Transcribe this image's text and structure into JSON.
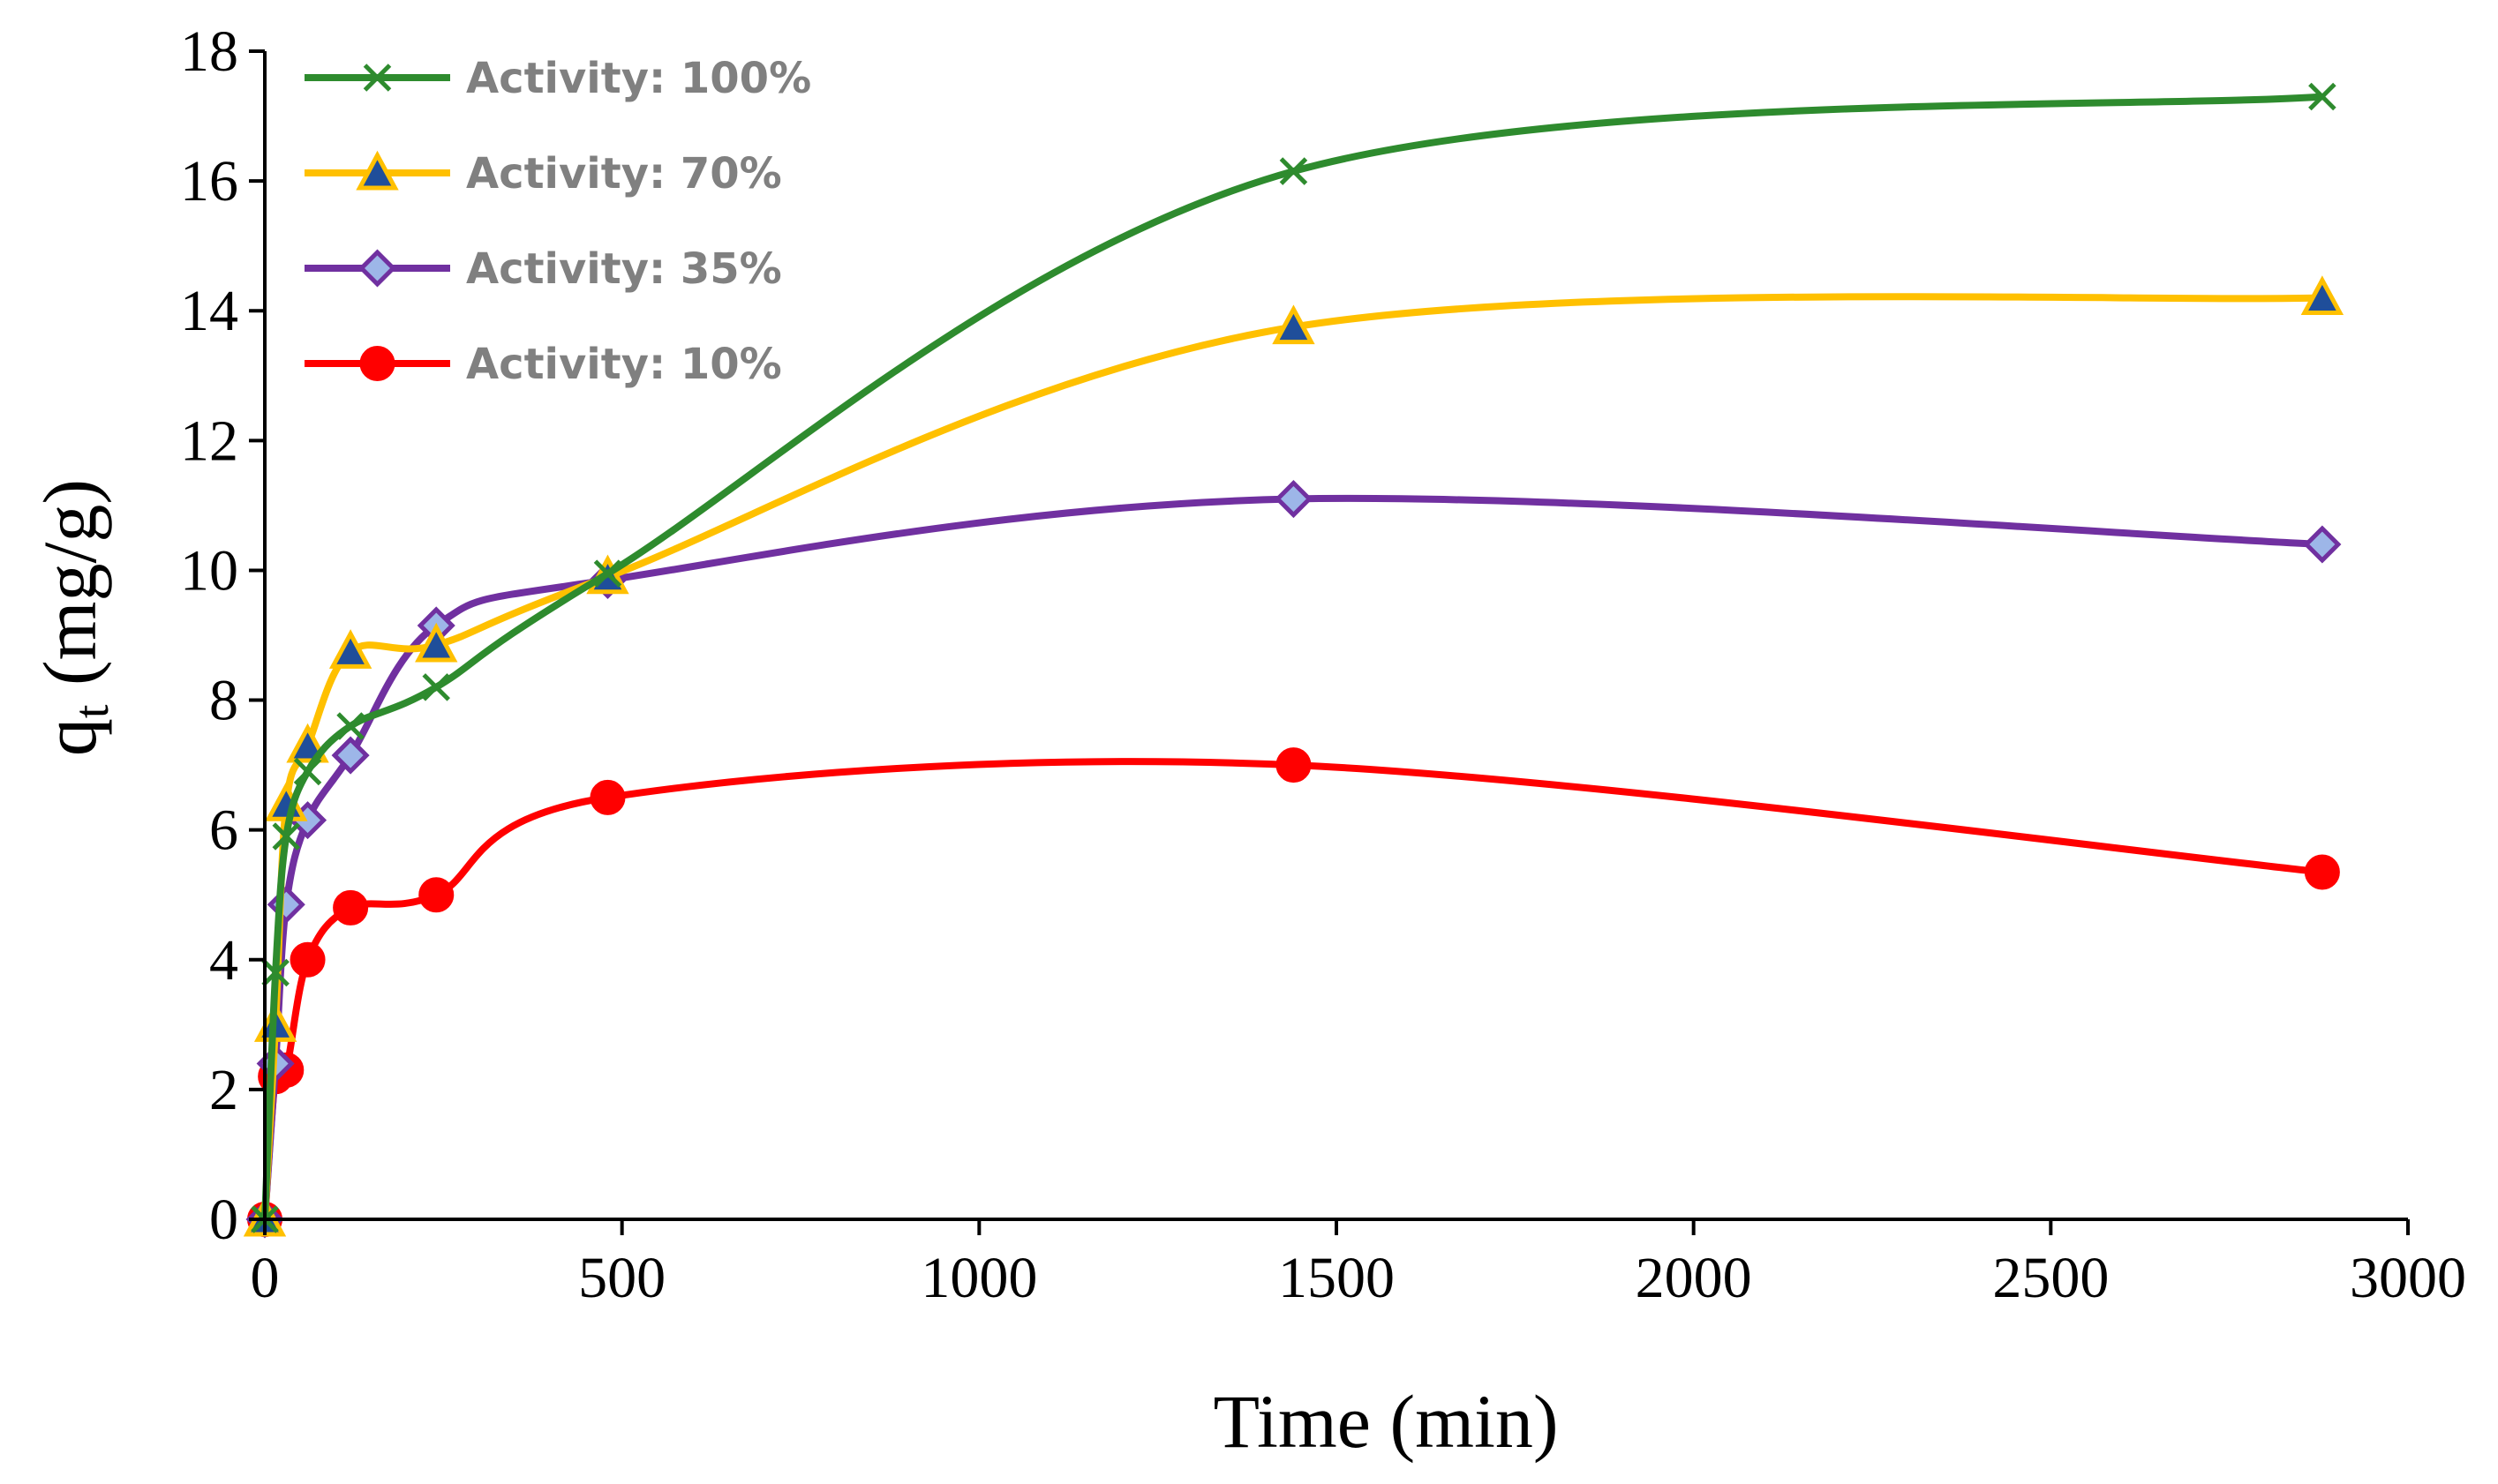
{
  "chart_data": {
    "type": "line",
    "xlabel": "Time (min)",
    "ylabel_main": "q",
    "ylabel_sub": "t",
    "ylabel_unit": "(mg/g)",
    "xlim": [
      0,
      3000
    ],
    "ylim": [
      0,
      18
    ],
    "xticks": [
      0,
      500,
      1000,
      1500,
      2000,
      2500,
      3000
    ],
    "yticks": [
      0,
      2,
      4,
      6,
      8,
      10,
      12,
      14,
      16,
      18
    ],
    "x": [
      0,
      15,
      30,
      60,
      120,
      240,
      480,
      1440,
      2880
    ],
    "legend_position": "top-left",
    "series": [
      {
        "name": "Activity: 100%",
        "color": "#2E8B2E",
        "marker": "x",
        "values": [
          0,
          3.8,
          5.9,
          6.9,
          7.6,
          8.2,
          9.95,
          16.15,
          17.3
        ]
      },
      {
        "name": "Activity: 70%",
        "color": "#FFC000",
        "marker": "triangle",
        "values": [
          0,
          3.0,
          6.4,
          7.3,
          8.75,
          8.85,
          9.9,
          13.75,
          14.2
        ]
      },
      {
        "name": "Activity: 35%",
        "color": "#7030A0",
        "marker": "diamond",
        "values": [
          0,
          2.4,
          4.85,
          6.15,
          7.15,
          9.15,
          9.85,
          11.1,
          10.4
        ]
      },
      {
        "name": "Activity: 10%",
        "color": "#FF0000",
        "marker": "circle",
        "values": [
          0,
          2.2,
          2.3,
          4.0,
          4.8,
          5.0,
          6.5,
          7.0,
          5.35
        ]
      }
    ]
  }
}
